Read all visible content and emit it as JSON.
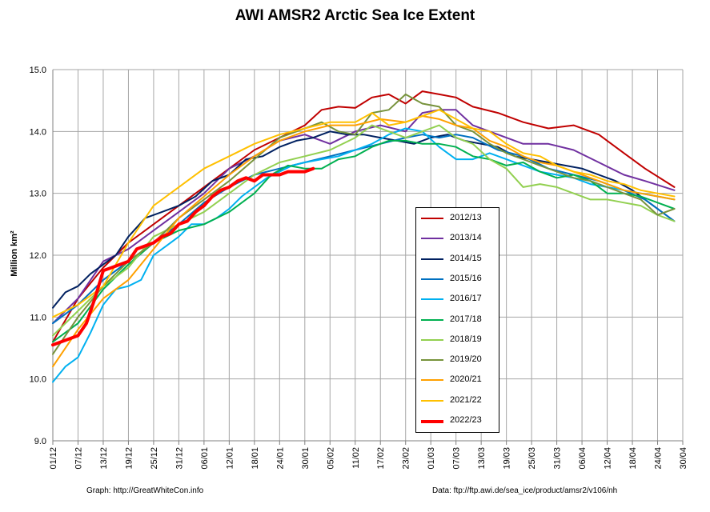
{
  "chart_data": {
    "type": "line",
    "title": "AWI AMSR2 Arctic Sea Ice Extent",
    "xlabel": "",
    "ylabel": "Million km²",
    "ylim": [
      9.0,
      15.0
    ],
    "yticks": [
      "9.0",
      "10.0",
      "11.0",
      "12.0",
      "13.0",
      "14.0",
      "15.0"
    ],
    "xlim": [
      "01/12",
      "30/04"
    ],
    "xticks": [
      "01/12",
      "07/12",
      "13/12",
      "19/12",
      "25/12",
      "31/12",
      "06/01",
      "12/01",
      "18/01",
      "24/01",
      "30/01",
      "05/02",
      "11/02",
      "17/02",
      "23/02",
      "01/03",
      "07/03",
      "13/03",
      "19/03",
      "25/03",
      "31/03",
      "06/04",
      "12/04",
      "18/04",
      "24/04",
      "30/04"
    ],
    "grid": true,
    "legend_position": "center-right",
    "credit_left": "Graph: http://GreatWhiteCon.info",
    "credit_right": "Data: ftp://ftp.awi.de/sea_ice/product/amsr2/v106/nh",
    "series": [
      {
        "name": "2012/13",
        "color": "#c00000",
        "width": 2,
        "x": [
          0,
          6,
          12,
          18,
          24,
          30,
          36,
          42,
          48,
          54,
          60,
          64,
          68,
          72,
          76,
          80,
          84,
          88,
          92,
          96,
          100,
          106,
          112,
          118,
          124,
          130,
          136,
          141,
          148
        ],
        "y": [
          10.6,
          11.3,
          11.8,
          12.2,
          12.5,
          12.8,
          13.1,
          13.4,
          13.7,
          13.9,
          14.1,
          14.35,
          14.4,
          14.38,
          14.55,
          14.6,
          14.45,
          14.65,
          14.6,
          14.55,
          14.4,
          14.3,
          14.15,
          14.05,
          14.1,
          13.95,
          13.65,
          13.4,
          13.1
        ]
      },
      {
        "name": "2013/14",
        "color": "#7030a0",
        "width": 2,
        "x": [
          0,
          6,
          12,
          18,
          24,
          30,
          36,
          42,
          48,
          54,
          60,
          66,
          72,
          78,
          84,
          88,
          92,
          96,
          100,
          106,
          112,
          118,
          124,
          130,
          136,
          141,
          148
        ],
        "y": [
          10.9,
          11.3,
          11.9,
          12.1,
          12.4,
          12.7,
          13.0,
          13.4,
          13.6,
          13.85,
          13.95,
          13.8,
          14.0,
          14.1,
          14.0,
          14.3,
          14.35,
          14.35,
          14.1,
          13.95,
          13.8,
          13.8,
          13.7,
          13.5,
          13.3,
          13.2,
          13.05
        ]
      },
      {
        "name": "2014/15",
        "color": "#002060",
        "width": 2,
        "x": [
          0,
          3,
          6,
          9,
          12,
          15,
          18,
          22,
          26,
          30,
          34,
          38,
          42,
          46,
          50,
          54,
          58,
          62,
          66,
          70,
          74,
          78,
          82,
          86,
          90,
          94,
          98,
          102,
          106,
          110,
          114,
          118,
          122,
          126,
          130,
          134,
          138,
          142,
          148
        ],
        "y": [
          11.15,
          11.4,
          11.5,
          11.7,
          11.85,
          12.0,
          12.3,
          12.6,
          12.7,
          12.8,
          12.95,
          13.2,
          13.3,
          13.55,
          13.6,
          13.75,
          13.85,
          13.9,
          14.0,
          13.95,
          13.95,
          13.9,
          13.85,
          13.8,
          13.9,
          13.95,
          13.85,
          13.8,
          13.75,
          13.6,
          13.55,
          13.5,
          13.45,
          13.4,
          13.3,
          13.2,
          13.05,
          12.85,
          12.55
        ]
      },
      {
        "name": "2015/16",
        "color": "#0070c0",
        "width": 2,
        "x": [
          0,
          6,
          12,
          18,
          24,
          30,
          36,
          42,
          48,
          54,
          60,
          66,
          72,
          78,
          84,
          88,
          92,
          96,
          100,
          106,
          112,
          118,
          124,
          130,
          136,
          141,
          148
        ],
        "y": [
          10.9,
          11.2,
          11.6,
          11.9,
          12.2,
          12.5,
          12.85,
          13.1,
          13.3,
          13.4,
          13.5,
          13.6,
          13.7,
          13.8,
          13.9,
          13.95,
          13.9,
          13.95,
          13.9,
          13.7,
          13.6,
          13.4,
          13.3,
          13.2,
          13.05,
          12.9,
          12.55
        ]
      },
      {
        "name": "2016/17",
        "color": "#00b0f0",
        "width": 2,
        "x": [
          0,
          3,
          6,
          9,
          12,
          15,
          18,
          21,
          24,
          27,
          30,
          33,
          36,
          39,
          42,
          45,
          48,
          51,
          54,
          57,
          60,
          64,
          68,
          72,
          76,
          80,
          84,
          88,
          92,
          96,
          100,
          104,
          108,
          112,
          116,
          120,
          124,
          128,
          132,
          136,
          140,
          144,
          148
        ],
        "y": [
          9.95,
          10.2,
          10.35,
          10.75,
          11.2,
          11.45,
          11.5,
          11.6,
          12.0,
          12.15,
          12.3,
          12.5,
          12.5,
          12.6,
          12.75,
          12.95,
          13.1,
          13.25,
          13.35,
          13.45,
          13.5,
          13.55,
          13.6,
          13.7,
          13.8,
          13.95,
          14.05,
          14.0,
          13.75,
          13.55,
          13.55,
          13.65,
          13.55,
          13.45,
          13.35,
          13.3,
          13.25,
          13.15,
          13.1,
          13.05,
          13.0,
          12.95,
          12.9
        ]
      },
      {
        "name": "2017/18",
        "color": "#00b050",
        "width": 2,
        "x": [
          0,
          6,
          12,
          18,
          24,
          30,
          36,
          42,
          48,
          52,
          56,
          60,
          64,
          68,
          72,
          76,
          80,
          84,
          88,
          92,
          96,
          100,
          104,
          108,
          112,
          116,
          120,
          124,
          128,
          132,
          136,
          140,
          144,
          148
        ],
        "y": [
          10.6,
          10.9,
          11.45,
          11.85,
          12.2,
          12.4,
          12.5,
          12.7,
          13.0,
          13.3,
          13.45,
          13.4,
          13.4,
          13.55,
          13.6,
          13.75,
          13.85,
          13.85,
          13.8,
          13.8,
          13.75,
          13.6,
          13.55,
          13.45,
          13.5,
          13.35,
          13.25,
          13.3,
          13.2,
          13.0,
          13.0,
          12.95,
          12.85,
          12.75
        ]
      },
      {
        "name": "2018/19",
        "color": "#92d050",
        "width": 2,
        "x": [
          0,
          6,
          12,
          18,
          24,
          30,
          36,
          42,
          48,
          54,
          60,
          66,
          72,
          76,
          80,
          84,
          88,
          92,
          96,
          100,
          104,
          108,
          112,
          116,
          120,
          124,
          128,
          132,
          136,
          140,
          144,
          148
        ],
        "y": [
          10.7,
          11.1,
          11.5,
          11.8,
          12.3,
          12.5,
          12.7,
          13.0,
          13.3,
          13.5,
          13.6,
          13.7,
          13.9,
          14.1,
          14.0,
          13.9,
          14.0,
          14.1,
          13.9,
          13.8,
          13.55,
          13.4,
          13.1,
          13.15,
          13.1,
          13.0,
          12.9,
          12.9,
          12.85,
          12.8,
          12.65,
          12.55
        ]
      },
      {
        "name": "2019/20",
        "color": "#77933c",
        "width": 2,
        "x": [
          0,
          6,
          12,
          18,
          24,
          30,
          36,
          42,
          48,
          54,
          60,
          64,
          68,
          72,
          76,
          80,
          84,
          88,
          92,
          96,
          100,
          104,
          108,
          112,
          116,
          120,
          124,
          128,
          132,
          136,
          140,
          144,
          148
        ],
        "y": [
          10.4,
          11.0,
          11.5,
          11.9,
          12.2,
          12.6,
          12.9,
          13.2,
          13.55,
          13.9,
          14.05,
          14.15,
          14.0,
          13.95,
          14.3,
          14.35,
          14.6,
          14.45,
          14.4,
          14.1,
          14.0,
          13.8,
          13.65,
          13.55,
          13.45,
          13.35,
          13.25,
          13.2,
          13.1,
          13.0,
          12.9,
          12.65,
          12.75
        ]
      },
      {
        "name": "2020/21",
        "color": "#ffa000",
        "width": 2,
        "x": [
          0,
          6,
          12,
          18,
          24,
          30,
          36,
          42,
          48,
          54,
          60,
          66,
          72,
          78,
          84,
          88,
          92,
          96,
          100,
          104,
          108,
          112,
          116,
          120,
          124,
          128,
          132,
          136,
          140,
          144,
          148
        ],
        "y": [
          10.2,
          10.8,
          11.3,
          11.6,
          12.1,
          12.6,
          12.95,
          13.3,
          13.6,
          13.85,
          14.0,
          14.1,
          14.1,
          14.2,
          14.15,
          14.25,
          14.2,
          14.1,
          14.05,
          13.85,
          13.75,
          13.6,
          13.5,
          13.45,
          13.35,
          13.25,
          13.15,
          13.05,
          13.0,
          12.95,
          12.9
        ]
      },
      {
        "name": "2021/22",
        "color": "#ffc000",
        "width": 2,
        "x": [
          0,
          6,
          12,
          18,
          24,
          30,
          36,
          42,
          48,
          54,
          60,
          66,
          72,
          76,
          80,
          84,
          88,
          92,
          96,
          100,
          104,
          108,
          112,
          116,
          120,
          124,
          128,
          132,
          136,
          140,
          144,
          148
        ],
        "y": [
          11.0,
          11.2,
          11.5,
          12.2,
          12.8,
          13.1,
          13.4,
          13.6,
          13.8,
          13.95,
          14.05,
          14.15,
          14.15,
          14.3,
          14.1,
          14.15,
          14.25,
          14.35,
          14.2,
          14.05,
          14.0,
          13.8,
          13.65,
          13.6,
          13.45,
          13.35,
          13.3,
          13.2,
          13.15,
          13.05,
          13.0,
          12.95
        ]
      },
      {
        "name": "2022/23",
        "color": "#ff0000",
        "width": 4,
        "x": [
          0,
          2,
          4,
          6,
          8,
          10,
          12,
          14,
          16,
          18,
          20,
          22,
          24,
          26,
          28,
          30,
          32,
          34,
          36,
          38,
          40,
          42,
          44,
          46,
          48,
          50,
          52,
          54,
          56,
          58,
          60,
          62
        ],
        "y": [
          10.55,
          10.6,
          10.65,
          10.7,
          10.9,
          11.3,
          11.75,
          11.8,
          11.85,
          11.9,
          12.1,
          12.15,
          12.2,
          12.3,
          12.35,
          12.5,
          12.55,
          12.7,
          12.8,
          12.95,
          13.05,
          13.1,
          13.2,
          13.25,
          13.2,
          13.3,
          13.3,
          13.3,
          13.35,
          13.35,
          13.35,
          13.4
        ]
      }
    ]
  }
}
